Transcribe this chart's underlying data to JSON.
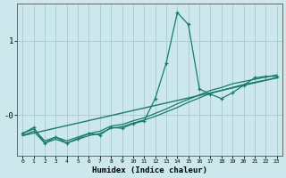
{
  "xlabel": "Humidex (Indice chaleur)",
  "background_color": "#cce8ec",
  "grid_color": "#aacdd4",
  "line_color": "#1a7a6e",
  "x_ticks": [
    0,
    1,
    2,
    3,
    4,
    5,
    6,
    7,
    8,
    9,
    10,
    11,
    12,
    13,
    14,
    15,
    16,
    17,
    18,
    19,
    20,
    21,
    22,
    23
  ],
  "ylim": [
    -0.55,
    1.5
  ],
  "xlim": [
    -0.5,
    23.5
  ],
  "ytick_positions": [
    0.0,
    1.0
  ],
  "ytick_labels": [
    "-0",
    "1"
  ],
  "line1_x": [
    0,
    1,
    2,
    3,
    4,
    5,
    6,
    7,
    8,
    9,
    10,
    11,
    12,
    13,
    14,
    15,
    16,
    17,
    18,
    19,
    20,
    21,
    22,
    23
  ],
  "line1_y": [
    -0.25,
    -0.17,
    -0.38,
    -0.3,
    -0.38,
    -0.32,
    -0.25,
    -0.27,
    -0.17,
    -0.18,
    -0.12,
    -0.08,
    0.22,
    0.7,
    1.38,
    1.22,
    0.35,
    0.28,
    0.22,
    0.3,
    0.4,
    0.5,
    0.52,
    0.52
  ],
  "line2_x": [
    0,
    1,
    2,
    3,
    4,
    5,
    6,
    7,
    8,
    9,
    10,
    11,
    12,
    13,
    14,
    15,
    16,
    17,
    18,
    19,
    20,
    21,
    22,
    23
  ],
  "line2_y": [
    -0.28,
    -0.22,
    -0.38,
    -0.33,
    -0.38,
    -0.33,
    -0.28,
    -0.25,
    -0.18,
    -0.16,
    -0.11,
    -0.07,
    -0.02,
    0.04,
    0.1,
    0.17,
    0.23,
    0.29,
    0.33,
    0.37,
    0.41,
    0.44,
    0.47,
    0.5
  ],
  "line3_x": [
    0,
    1,
    2,
    3,
    4,
    5,
    6,
    7,
    8,
    9,
    10,
    11,
    12,
    13,
    14,
    15,
    16,
    17,
    18,
    19,
    20,
    21,
    22,
    23
  ],
  "line3_y": [
    -0.25,
    -0.19,
    -0.35,
    -0.3,
    -0.35,
    -0.3,
    -0.25,
    -0.22,
    -0.15,
    -0.13,
    -0.08,
    -0.04,
    0.02,
    0.08,
    0.15,
    0.21,
    0.27,
    0.33,
    0.37,
    0.42,
    0.45,
    0.48,
    0.51,
    0.54
  ],
  "line4_x": [
    0,
    23
  ],
  "line4_y": [
    -0.28,
    0.5
  ]
}
